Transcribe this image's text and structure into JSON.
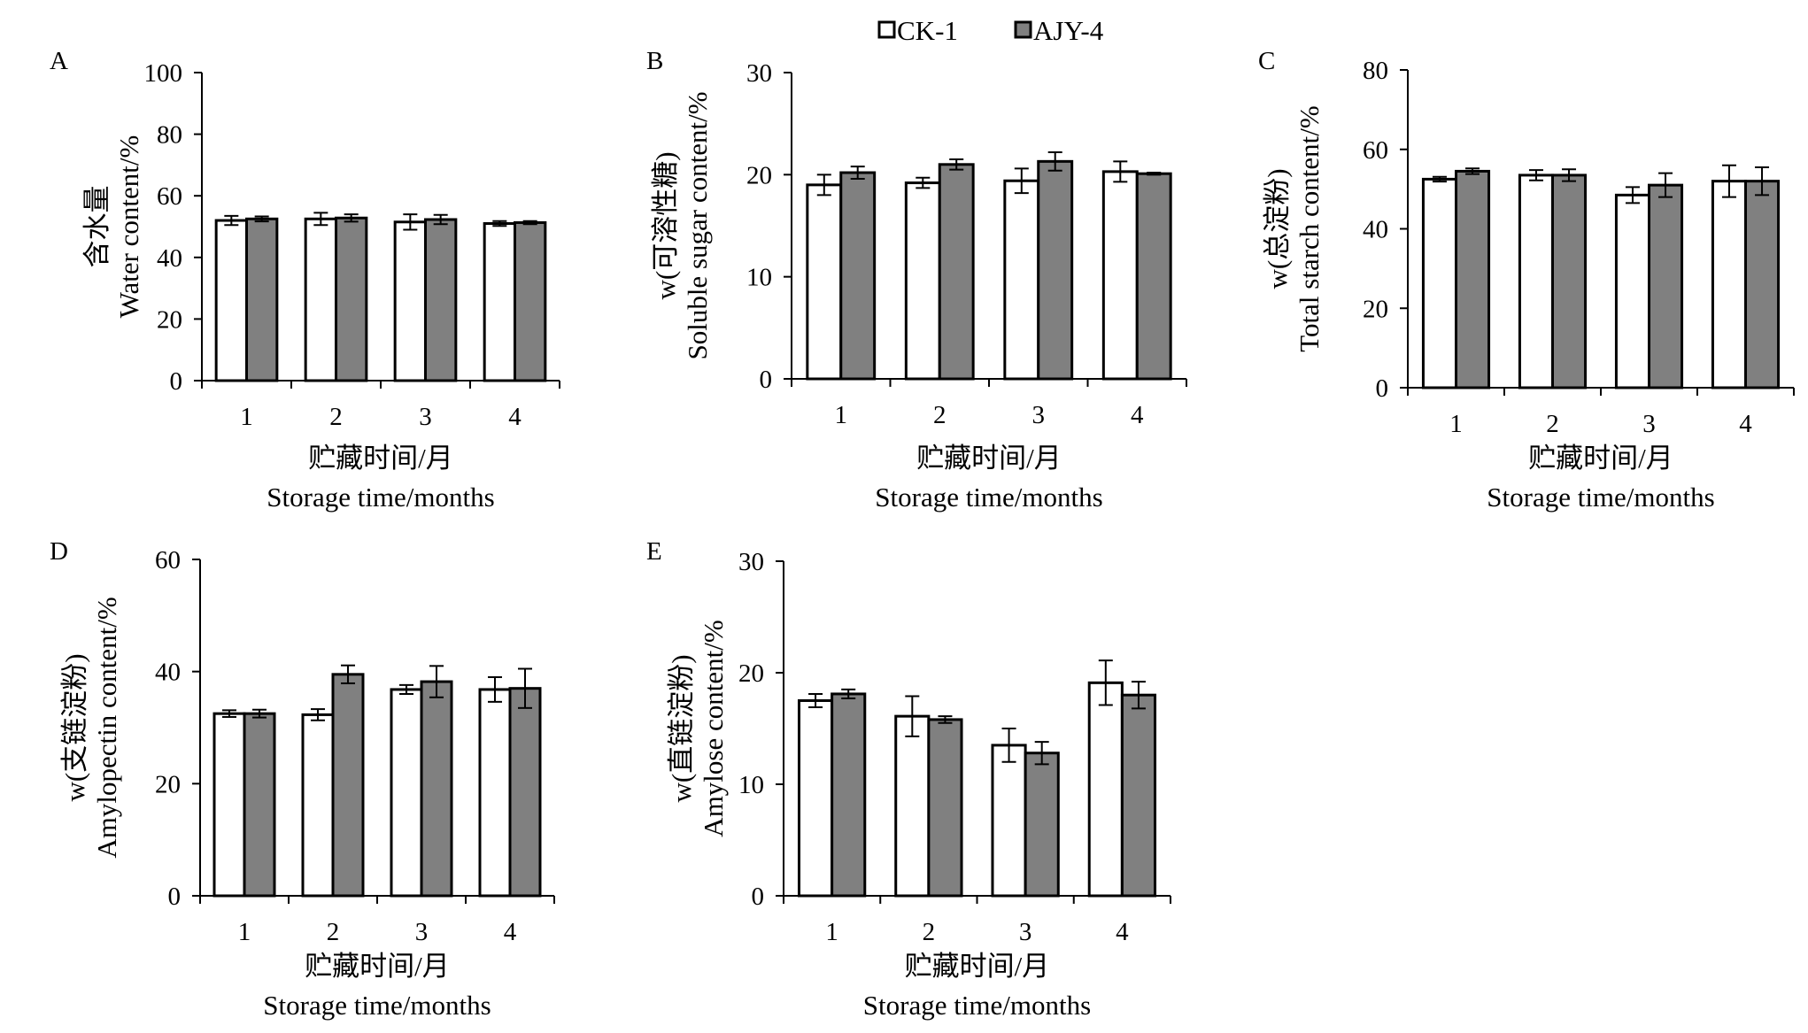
{
  "legend": {
    "items": [
      {
        "label": "CK-1",
        "color": "#ffffff"
      },
      {
        "label": "AJY-4",
        "color": "#808080"
      }
    ]
  },
  "chart_data": [
    {
      "type": "bar",
      "panel": "A",
      "categories": [
        "1",
        "2",
        "3",
        "4"
      ],
      "series": [
        {
          "name": "CK-1",
          "values": [
            52,
            52.5,
            51.5,
            51
          ],
          "errors": [
            1.5,
            2,
            2.5,
            0.8
          ]
        },
        {
          "name": "AJY-4",
          "values": [
            52.5,
            52.8,
            52.3,
            51.3
          ],
          "errors": [
            0.8,
            1.2,
            1.5,
            0.5
          ]
        }
      ],
      "ylabel_cn": "含水量",
      "ylabel_en": "Water content/%",
      "xlabel_cn": "贮藏时间/月",
      "xlabel_en": "Storage time/months",
      "ylim": [
        0,
        100
      ],
      "yticks": [
        0,
        20,
        40,
        60,
        80,
        100
      ]
    },
    {
      "type": "bar",
      "panel": "B",
      "categories": [
        "1",
        "2",
        "3",
        "4"
      ],
      "series": [
        {
          "name": "CK-1",
          "values": [
            19,
            19.2,
            19.4,
            20.3
          ],
          "errors": [
            1.0,
            0.5,
            1.2,
            1.0
          ]
        },
        {
          "name": "AJY-4",
          "values": [
            20.2,
            21,
            21.3,
            20.1
          ],
          "errors": [
            0.6,
            0.5,
            0.9,
            0.1
          ]
        }
      ],
      "ylabel_cn": "w(可溶性糖)",
      "ylabel_en": "Soluble sugar content/%",
      "xlabel_cn": "贮藏时间/月",
      "xlabel_en": "Storage time/months",
      "ylim": [
        0,
        30
      ],
      "yticks": [
        0,
        10,
        20,
        30
      ]
    },
    {
      "type": "bar",
      "panel": "C",
      "categories": [
        "1",
        "2",
        "3",
        "4"
      ],
      "series": [
        {
          "name": "CK-1",
          "values": [
            52.5,
            53.5,
            48.5,
            52
          ],
          "errors": [
            0.6,
            1.3,
            2.0,
            4.0
          ]
        },
        {
          "name": "AJY-4",
          "values": [
            54.5,
            53.5,
            51,
            52
          ],
          "errors": [
            0.7,
            1.5,
            3.0,
            3.5
          ]
        }
      ],
      "ylabel_cn": "w(总淀粉)",
      "ylabel_en": "Total starch content/%",
      "xlabel_cn": "贮藏时间/月",
      "xlabel_en": "Storage time/months",
      "ylim": [
        0,
        80
      ],
      "yticks": [
        0,
        20,
        40,
        60,
        80
      ]
    },
    {
      "type": "bar",
      "panel": "D",
      "categories": [
        "1",
        "2",
        "3",
        "4"
      ],
      "series": [
        {
          "name": "CK-1",
          "values": [
            32.5,
            32.3,
            36.8,
            36.8
          ],
          "errors": [
            0.6,
            1.0,
            0.8,
            2.2
          ]
        },
        {
          "name": "AJY-4",
          "values": [
            32.5,
            39.5,
            38.2,
            37
          ],
          "errors": [
            0.7,
            1.6,
            2.8,
            3.5
          ]
        }
      ],
      "ylabel_cn": "w(支链淀粉)",
      "ylabel_en": "Amylopectin content/%",
      "xlabel_cn": "贮藏时间/月",
      "xlabel_en": "Storage time/months",
      "ylim": [
        0,
        60
      ],
      "yticks": [
        0,
        20,
        40,
        60
      ]
    },
    {
      "type": "bar",
      "panel": "E",
      "categories": [
        "1",
        "2",
        "3",
        "4"
      ],
      "series": [
        {
          "name": "CK-1",
          "values": [
            17.5,
            16.1,
            13.5,
            19.1
          ],
          "errors": [
            0.6,
            1.8,
            1.5,
            2.0
          ]
        },
        {
          "name": "AJY-4",
          "values": [
            18.1,
            15.8,
            12.8,
            18
          ],
          "errors": [
            0.4,
            0.3,
            1.0,
            1.2
          ]
        }
      ],
      "ylabel_cn": "w(直链淀粉)",
      "ylabel_en": "Amylose content/%",
      "xlabel_cn": "贮藏时间/月",
      "xlabel_en": "Storage time/months",
      "ylim": [
        0,
        30
      ],
      "yticks": [
        0,
        10,
        20,
        30
      ]
    }
  ]
}
